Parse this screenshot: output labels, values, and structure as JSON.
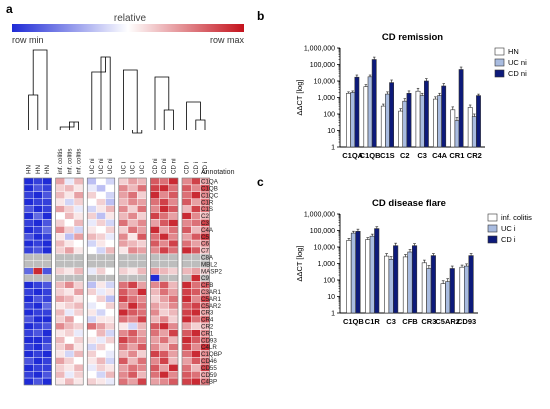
{
  "panels": {
    "a": {
      "letter": "a",
      "legend": {
        "label": "relative",
        "min_label": "row min",
        "max_label": "row max"
      },
      "annotation_header": "Annotation",
      "columns": [
        "HN",
        "HN",
        "HN",
        "inf. colitis",
        "inf. colitis",
        "inf. colitis",
        "UC ni",
        "UC ni",
        "UC ni",
        "UC i",
        "UC i",
        "UC i",
        "CD ni",
        "CD ni",
        "CD ni",
        "CD i",
        "CD i",
        "CD i"
      ],
      "rows": [
        "C1QA",
        "C1QB",
        "C1QC",
        "C1R",
        "C1S",
        "C2",
        "C3",
        "C4A",
        "C5",
        "C6",
        "C7",
        "C8A",
        "MBL2",
        "MASP2",
        "C9",
        "CFB",
        "C3AR1",
        "C5AR1",
        "C5AR2",
        "CR3",
        "CR4",
        "CR2",
        "CR1",
        "CD93",
        "C4LR",
        "C1QBP",
        "CD46",
        "CD55",
        "CD59",
        "C4BP"
      ]
    },
    "b": {
      "letter": "b"
    },
    "c": {
      "letter": "c"
    }
  },
  "chart_data": [
    {
      "type": "heatmap",
      "title": "",
      "colorscale": {
        "min_color": "#1f2bd6",
        "mid_color": "#ffffff",
        "max_color": "#c4121c",
        "missing_color": "#bdbdbd"
      },
      "columns": [
        "HN",
        "HN",
        "HN",
        "inf. colitis",
        "inf. colitis",
        "inf. colitis",
        "UC ni",
        "UC ni",
        "UC ni",
        "UC i",
        "UC i",
        "UC i",
        "CD ni",
        "CD ni",
        "CD ni",
        "CD i",
        "CD i",
        "CD i"
      ],
      "rows": [
        "C1QA",
        "C1QB",
        "C1QC",
        "C1R",
        "C1S",
        "C2",
        "C3",
        "C4A",
        "C5",
        "C6",
        "C7",
        "C8A",
        "MBL2",
        "MASP2",
        "C9",
        "CFB",
        "C3AR1",
        "C5AR1",
        "C5AR2",
        "CR3",
        "CR4",
        "CR2",
        "CR1",
        "CD93",
        "C4LR",
        "C1QBP",
        "CD46",
        "CD55",
        "CD59",
        "C4BP"
      ],
      "values": [
        [
          -1,
          -0.9,
          -1,
          0.4,
          -0.1,
          0.3,
          -0.3,
          0,
          -0.2,
          0.2,
          0.4,
          0.3,
          0.7,
          0.6,
          0.9,
          0.5,
          0.8,
          0.4
        ],
        [
          -1,
          -0.8,
          -0.9,
          0.2,
          0.3,
          0.1,
          -0.1,
          -0.3,
          0,
          0.5,
          0.3,
          0.6,
          0.8,
          0.9,
          0.6,
          0.7,
          0.5,
          0.8
        ],
        [
          -0.9,
          -1,
          -0.8,
          0.3,
          0.1,
          0.4,
          0.2,
          0,
          -0.2,
          0.4,
          0.6,
          0.2,
          0.9,
          0.5,
          0.7,
          0.6,
          0.9,
          0.5
        ],
        [
          -1,
          -0.9,
          -0.9,
          0.1,
          -0.2,
          0.2,
          0,
          0.2,
          -0.3,
          0.3,
          0.5,
          0.4,
          0.6,
          0.8,
          0.5,
          0.7,
          0.4,
          0.6
        ],
        [
          -0.8,
          -1,
          -0.9,
          0.4,
          0.2,
          -0.1,
          -0.2,
          0.1,
          0.3,
          0.5,
          0.2,
          0.6,
          0.5,
          0.9,
          0.7,
          0.3,
          0.8,
          0.6
        ],
        [
          -1,
          -0.7,
          -1,
          0,
          0.3,
          0.1,
          0.2,
          -0.3,
          0.1,
          0.3,
          0.5,
          0.2,
          0.8,
          0.6,
          0.4,
          0.9,
          0.5,
          0.3
        ],
        [
          -0.9,
          -1,
          -0.8,
          0.2,
          0,
          0.3,
          -0.1,
          0.2,
          -0.2,
          0.6,
          0.3,
          0.5,
          0.4,
          0.7,
          0.9,
          0.5,
          0.6,
          0.8
        ],
        [
          -1,
          -0.9,
          -0.7,
          0.5,
          0.2,
          -0.2,
          0.1,
          0,
          0.2,
          0.2,
          0.6,
          0.4,
          0.9,
          0.4,
          0.6,
          0.7,
          0.3,
          0.5
        ],
        [
          -0.8,
          -1,
          -0.9,
          0.1,
          -0.3,
          0.4,
          0.3,
          0.2,
          -0.1,
          0.5,
          0.1,
          0.7,
          0.6,
          0.9,
          0.5,
          0.4,
          0.7,
          0.9
        ],
        [
          -1,
          -0.9,
          -1,
          0.3,
          0.1,
          0,
          -0.2,
          0.1,
          0,
          0.4,
          0.3,
          0.2,
          0.7,
          0.5,
          0.8,
          0.6,
          0.4,
          0.5
        ],
        [
          -0.9,
          -0.8,
          -1,
          0.2,
          0.4,
          0.1,
          0,
          -0.2,
          0.3,
          0.1,
          0.5,
          0.4,
          0.5,
          0.8,
          0.6,
          0.9,
          0.7,
          0.3
        ],
        [
          null,
          null,
          null,
          null,
          null,
          null,
          null,
          null,
          null,
          null,
          null,
          null,
          null,
          null,
          null,
          null,
          null,
          null
        ],
        [
          null,
          null,
          null,
          null,
          null,
          null,
          null,
          null,
          null,
          null,
          null,
          null,
          null,
          null,
          null,
          null,
          null,
          null
        ],
        [
          -0.7,
          0.9,
          -0.8,
          0.2,
          0.1,
          0.3,
          -0.1,
          0.2,
          0,
          0.2,
          0.1,
          0.3,
          0.4,
          0.3,
          0.2,
          0.3,
          0.4,
          0.2
        ],
        [
          null,
          null,
          null,
          null,
          null,
          null,
          null,
          null,
          null,
          null,
          null,
          null,
          -1,
          null,
          null,
          null,
          0.9,
          null
        ],
        [
          -1,
          -0.9,
          -0.8,
          0.3,
          0.5,
          0.2,
          -0.3,
          0.1,
          -0.2,
          0.6,
          0.8,
          0.4,
          0.5,
          0.7,
          0.3,
          0.9,
          0.6,
          0.7
        ],
        [
          -0.9,
          -1,
          -0.9,
          0.2,
          0.1,
          0.4,
          0.2,
          -0.1,
          0.1,
          0.7,
          0.5,
          0.9,
          0.3,
          0.6,
          0.4,
          0.8,
          0.7,
          0.5
        ],
        [
          -1,
          -0.8,
          -0.9,
          0.4,
          0.3,
          0.1,
          0,
          0.2,
          -0.3,
          0.8,
          0.6,
          0.5,
          0.2,
          0.4,
          0.6,
          0.9,
          0.5,
          0.8
        ],
        [
          -0.9,
          -1,
          -0.7,
          0.1,
          0.2,
          0.3,
          -0.1,
          0,
          0.2,
          0.5,
          0.9,
          0.6,
          0.4,
          0.3,
          0.5,
          0.7,
          0.8,
          0.6
        ],
        [
          -1,
          -0.9,
          -0.9,
          0.3,
          -0.1,
          0.2,
          0.1,
          -0.2,
          0,
          0.9,
          0.7,
          0.6,
          0.5,
          0.2,
          0.3,
          0.8,
          0.9,
          0.4
        ],
        [
          -0.8,
          -1,
          -1,
          0.2,
          0.4,
          0,
          -0.2,
          0.1,
          0.1,
          0.6,
          0.5,
          0.8,
          0.3,
          0.5,
          0.2,
          0.9,
          0.6,
          0.7
        ],
        [
          -1,
          -0.9,
          -0.8,
          0.5,
          0.3,
          0.2,
          0.6,
          0.4,
          0.2,
          0.1,
          -0.2,
          0.3,
          0.7,
          0.9,
          0.5,
          0.4,
          0.2,
          0.3
        ],
        [
          -0.9,
          -0.8,
          -1,
          0.1,
          0.2,
          -0.1,
          0,
          0.3,
          -0.2,
          0.5,
          0.7,
          0.4,
          0.6,
          0.4,
          0.8,
          0.7,
          0.9,
          0.5
        ],
        [
          -1,
          -1,
          -0.9,
          0.3,
          0,
          0.2,
          0.1,
          -0.1,
          0.2,
          0.8,
          0.6,
          0.5,
          0.4,
          0.6,
          0.3,
          0.9,
          0.7,
          0.6
        ],
        [
          -0.9,
          -1,
          -0.8,
          0.2,
          0.4,
          0.1,
          -0.2,
          0.2,
          0,
          0.6,
          0.4,
          0.7,
          0.5,
          0.3,
          0.6,
          0.8,
          0.5,
          0.9
        ],
        [
          -1,
          -0.9,
          -1,
          0.1,
          -0.2,
          0.3,
          0.2,
          0,
          -0.1,
          0.3,
          0.5,
          0.2,
          0.8,
          0.7,
          0.4,
          0.6,
          0.9,
          0.5
        ],
        [
          -0.8,
          -1,
          -0.9,
          0.4,
          0.2,
          0,
          0.1,
          0.3,
          -0.2,
          0.7,
          0.3,
          0.6,
          0.5,
          0.8,
          0.3,
          0.4,
          0.7,
          0.6
        ],
        [
          -1,
          -0.9,
          -0.9,
          0.2,
          0.1,
          0.3,
          -0.1,
          0.2,
          0.1,
          0.4,
          0.6,
          0.5,
          0.7,
          0.4,
          0.9,
          0.6,
          0.3,
          0.8
        ],
        [
          -0.9,
          -1,
          -0.8,
          0.3,
          -0.1,
          0.2,
          0,
          -0.2,
          0.3,
          0.5,
          0.7,
          0.3,
          0.6,
          0.9,
          0.5,
          0.7,
          0.6,
          0.4
        ],
        [
          -1,
          -0.8,
          -1,
          0.1,
          0.3,
          0.1,
          0.2,
          0.1,
          -0.1,
          0.6,
          0.4,
          0.8,
          0.4,
          0.5,
          0.7,
          0.8,
          0.9,
          0.6
        ]
      ]
    },
    {
      "type": "bar",
      "title": "CD remission",
      "xlabel": "",
      "ylabel": "ΔΔCT [log]",
      "yscale": "log",
      "ylim": [
        1,
        1000000
      ],
      "yticks": [
        "1",
        "10",
        "100",
        "1,000",
        "10,000",
        "100,000",
        "1,000,000"
      ],
      "categories": [
        "C1QA",
        "C1QB",
        "C1S",
        "C2",
        "C3",
        "C4A",
        "CR1",
        "CR2"
      ],
      "series": [
        {
          "name": "HN",
          "color": "#ffffff",
          "values": [
            1800,
            4500,
            300,
            150,
            2400,
            800,
            180,
            250
          ],
          "errors": [
            400,
            1500,
            100,
            60,
            1200,
            300,
            90,
            100
          ]
        },
        {
          "name": "UC ni",
          "color": "#a9bce0",
          "values": [
            2000,
            18000,
            1600,
            600,
            1300,
            1300,
            40,
            70
          ],
          "errors": [
            500,
            5000,
            600,
            250,
            500,
            500,
            20,
            30
          ]
        },
        {
          "name": "CD ni",
          "color": "#0d1a7a",
          "values": [
            17000,
            200000,
            8000,
            1800,
            10000,
            5000,
            50000,
            1300
          ],
          "errors": [
            6000,
            80000,
            3500,
            700,
            4000,
            2000,
            20000,
            300
          ]
        }
      ],
      "legend": "top-right",
      "grid": false
    },
    {
      "type": "bar",
      "title": "CD disease flare",
      "xlabel": "",
      "ylabel": "ΔΔCT [log]",
      "yscale": "log",
      "ylim": [
        1,
        1000000
      ],
      "yticks": [
        "1",
        "10",
        "100",
        "1,000",
        "10,000",
        "100,000",
        "1,000,000"
      ],
      "categories": [
        "C1QB",
        "C1R",
        "C3",
        "CFB",
        "CR3",
        "C5AR2",
        "CD93"
      ],
      "series": [
        {
          "name": "inf. colitis",
          "color": "#ffffff",
          "values": [
            25000,
            28000,
            2800,
            2500,
            1100,
            60,
            600
          ],
          "errors": [
            8000,
            9000,
            1200,
            1000,
            500,
            30,
            200
          ]
        },
        {
          "name": "UC i",
          "color": "#a9bce0",
          "values": [
            70000,
            45000,
            1800,
            5000,
            500,
            80,
            700
          ],
          "errors": [
            20000,
            15000,
            800,
            2000,
            250,
            40,
            250
          ]
        },
        {
          "name": "CD i",
          "color": "#0d1a7a",
          "values": [
            90000,
            130000,
            12000,
            12000,
            3000,
            500,
            3000
          ],
          "errors": [
            30000,
            40000,
            5000,
            4000,
            1000,
            200,
            1000
          ]
        }
      ],
      "legend": "top-right",
      "grid": false
    }
  ]
}
